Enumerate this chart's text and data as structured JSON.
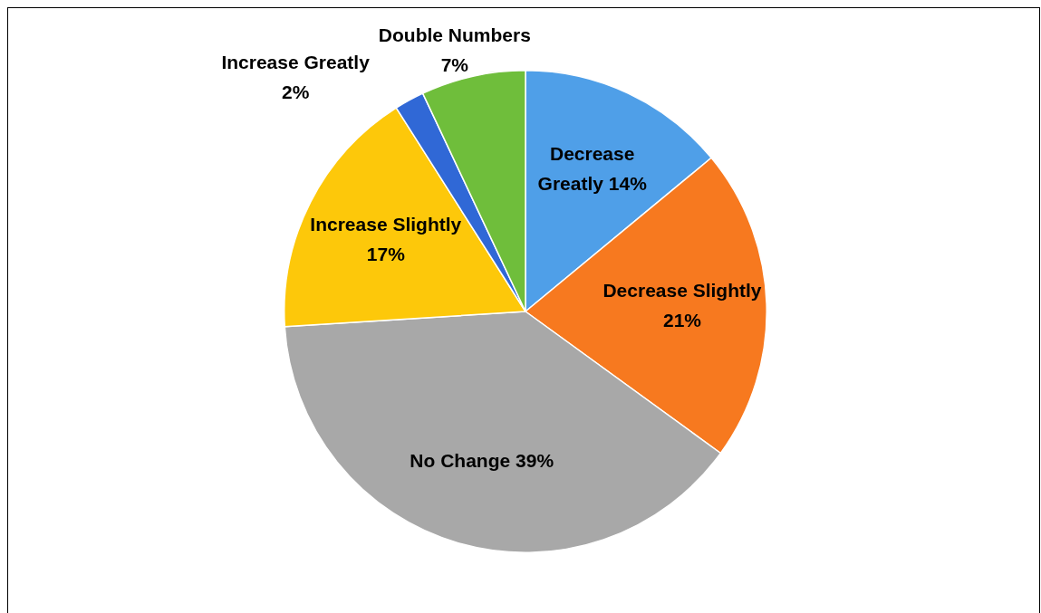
{
  "chart_data": {
    "type": "pie",
    "categories": [
      "Decrease Greatly",
      "Decrease Slightly",
      "No Change",
      "Increase Slightly",
      "Increase Greatly",
      "Double Numbers"
    ],
    "values": [
      14,
      21,
      39,
      17,
      2,
      7
    ],
    "value_labels": [
      "14%",
      "21%",
      "39%",
      "17%",
      "2%",
      "7%"
    ],
    "colors": [
      "#4f9fe8",
      "#f7791f",
      "#a8a8a8",
      "#fdc80a",
      "#3068d6",
      "#6fbe3b"
    ]
  }
}
